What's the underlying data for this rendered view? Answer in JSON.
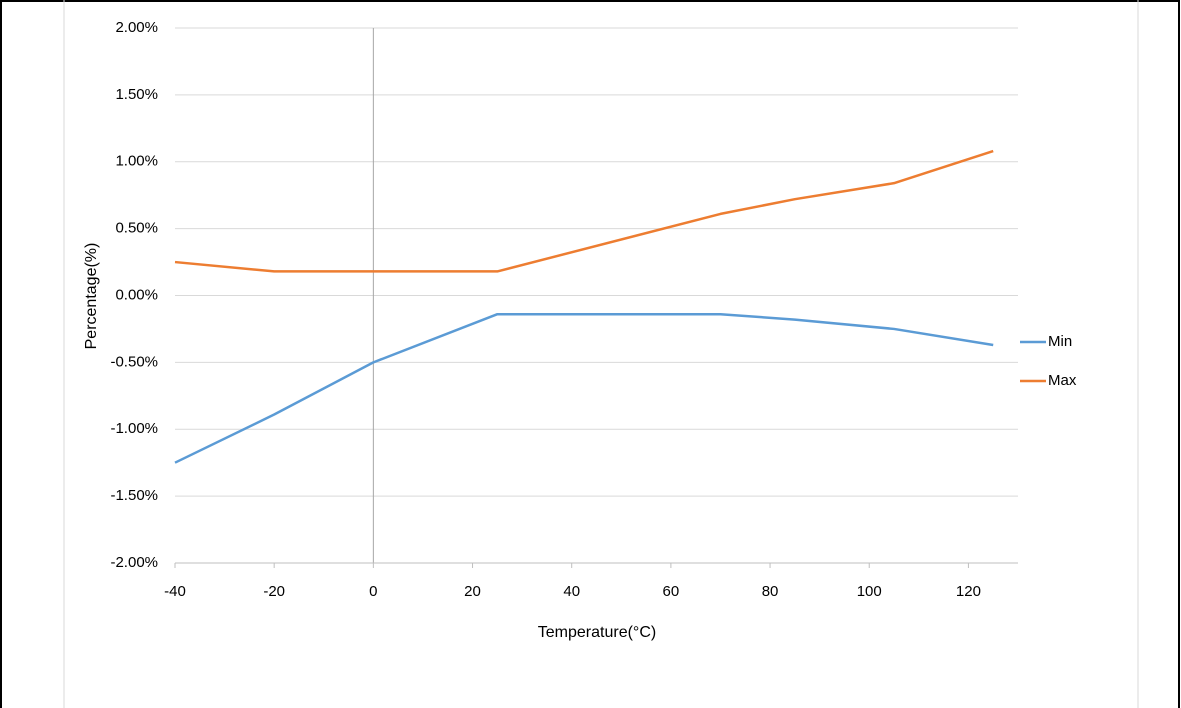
{
  "chart_data": {
    "type": "line",
    "x_label": "Temperature(°C)",
    "y_label": "Percentage(%)",
    "x": [
      -40,
      -20,
      0,
      25,
      70,
      85,
      105,
      125
    ],
    "series": [
      {
        "name": "Min",
        "color": "#5b9bd5",
        "values": [
          -1.25,
          -0.89,
          -0.5,
          -0.14,
          -0.14,
          -0.18,
          -0.25,
          -0.37
        ]
      },
      {
        "name": "Max",
        "color": "#ed7d31",
        "values": [
          0.25,
          0.18,
          0.18,
          0.18,
          0.61,
          0.72,
          0.84,
          1.08
        ]
      }
    ],
    "xlim": [
      -40,
      130
    ],
    "xticks": [
      -40,
      -20,
      0,
      20,
      40,
      60,
      80,
      100,
      120
    ],
    "ylim": [
      -2,
      2
    ],
    "yticks": [
      {
        "value": -2,
        "label": "-2.00%"
      },
      {
        "value": -1.5,
        "label": "-1.50%"
      },
      {
        "value": -1,
        "label": "-1.00%"
      },
      {
        "value": -0.5,
        "label": "-0.50%"
      },
      {
        "value": 0,
        "label": "0.00%"
      },
      {
        "value": 0.5,
        "label": "0.50%"
      },
      {
        "value": 1,
        "label": "1.00%"
      },
      {
        "value": 1.5,
        "label": "1.50%"
      },
      {
        "value": 2,
        "label": "2.00%"
      }
    ],
    "grid": true,
    "legend": "right"
  }
}
